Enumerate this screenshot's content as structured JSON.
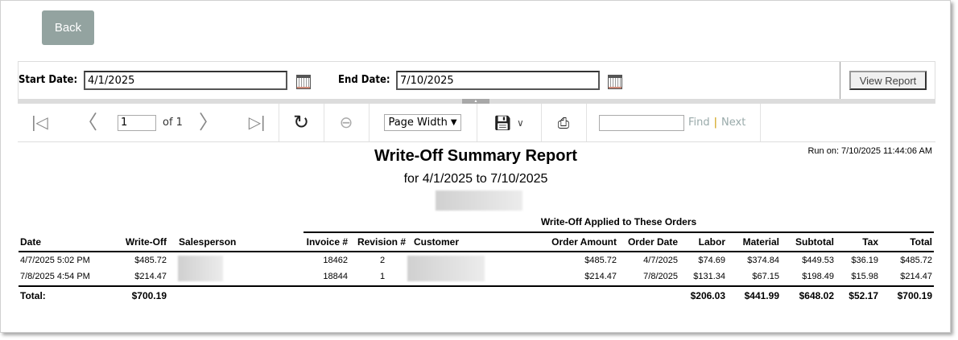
{
  "back_label": "Back",
  "params": {
    "start_label": "Start Date:",
    "start_value": "4/1/2025",
    "end_label": "End Date:",
    "end_value": "7/10/2025",
    "view_report": "View Report"
  },
  "toolbar": {
    "page": "1",
    "of": "of 1",
    "zoom": "Page Width",
    "find": "Find",
    "sep": "|",
    "next": "Next"
  },
  "report": {
    "title": "Write-Off Summary Report",
    "subtitle": "for 4/1/2025 to 7/10/2025",
    "run_on": "Run on: 7/10/2025 11:44:06 AM",
    "group_header": "Write-Off Applied to These Orders",
    "headers": [
      "Date",
      "Write-Off",
      "Salesperson",
      "Invoice #",
      "Revision #",
      "Customer",
      "Order Amount",
      "Order Date",
      "Labor",
      "Material",
      "Subtotal",
      "Tax",
      "Total"
    ],
    "rows": [
      [
        "4/7/2025 5:02 PM",
        "$485.72",
        "",
        "18462",
        "2",
        "",
        "$485.72",
        "4/7/2025",
        "$74.69",
        "$374.84",
        "$449.53",
        "$36.19",
        "$485.72"
      ],
      [
        "7/8/2025 4:54 PM",
        "$214.47",
        "",
        "18844",
        "1",
        "",
        "$214.47",
        "7/8/2025",
        "$131.34",
        "$67.15",
        "$198.49",
        "$15.98",
        "$214.47"
      ]
    ],
    "total": {
      "label": "Total:",
      "write_off": "$700.19",
      "labor": "$206.03",
      "material": "$441.99",
      "subtotal": "$648.02",
      "tax": "$52.17",
      "total": "$700.19"
    }
  }
}
